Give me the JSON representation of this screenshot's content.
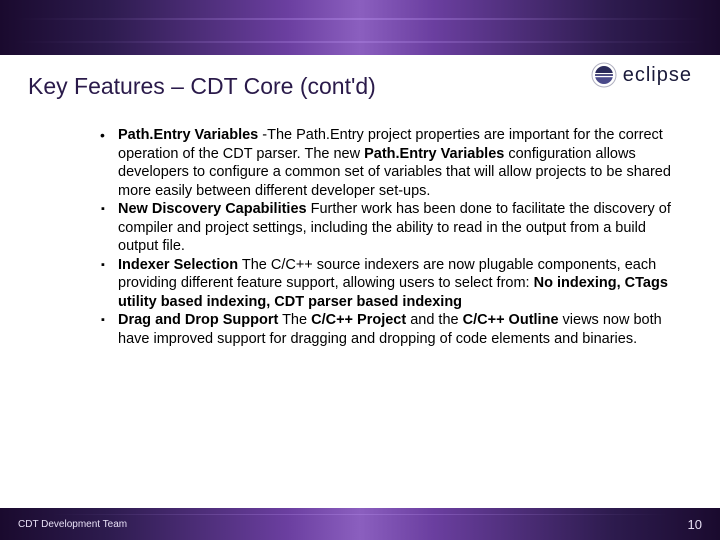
{
  "header": {
    "band_gradient": [
      "#1a0a2e",
      "#2d1b4e",
      "#6b3fa0",
      "#8b5fbf"
    ],
    "logo_text": "eclipse",
    "logo_color": "#1a1a3a"
  },
  "title": {
    "text": "Key Features – CDT Core (cont'd)",
    "color": "#2a1a4a",
    "fontsize": 23
  },
  "bullets": [
    {
      "marker": "dot",
      "segments": [
        {
          "text": "Path.Entry Variables",
          "bold": true
        },
        {
          "text": "  -The Path.Entry project properties are important for the correct operation of the CDT parser. The new ",
          "bold": false
        },
        {
          "text": "Path.Entry Variables",
          "bold": true
        },
        {
          "text": " configuration allows developers to configure a common set of variables that will allow projects to be shared more easily between different developer set-ups.",
          "bold": false
        }
      ]
    },
    {
      "marker": "sq",
      "segments": [
        {
          "text": "New Discovery Capabilities",
          "bold": true
        },
        {
          "text": " Further work has been done to facilitate the discovery of compiler and project settings, including the ability to read in the output from a build output file.",
          "bold": false
        }
      ]
    },
    {
      "marker": "sq",
      "segments": [
        {
          "text": "Indexer Selection",
          "bold": true
        },
        {
          "text": " The C/C++ source indexers are now plugable components, each providing different feature support, allowing users to select from: ",
          "bold": false
        },
        {
          "text": "No indexing, CTags utility based indexing, CDT parser based indexing",
          "bold": true
        }
      ]
    },
    {
      "marker": "sq",
      "segments": [
        {
          "text": "Drag and Drop Support",
          "bold": true
        },
        {
          "text": " The ",
          "bold": false
        },
        {
          "text": "C/C++ Project",
          "bold": true
        },
        {
          "text": " and the ",
          "bold": false
        },
        {
          "text": "C/C++ Outline",
          "bold": true
        },
        {
          "text": " views now both have improved support for dragging and dropping of code elements and binaries.",
          "bold": false
        }
      ]
    }
  ],
  "footer": {
    "text": "CDT Development Team",
    "page_number": "10",
    "text_color": "#e8e0f5"
  },
  "body_text": {
    "fontsize": 14.5,
    "line_height": 1.28,
    "color": "#000000"
  }
}
